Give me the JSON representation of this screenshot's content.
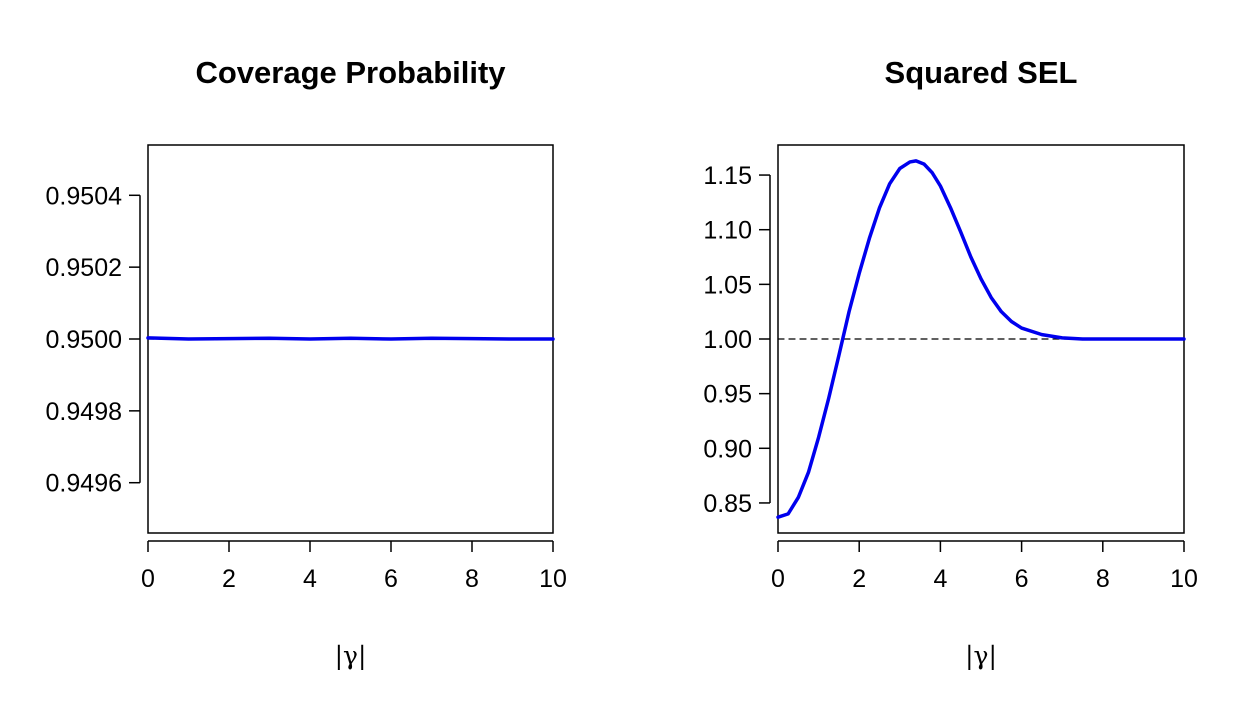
{
  "chart_data": [
    {
      "type": "line",
      "title": "Coverage Probability",
      "xlabel": "|γ|",
      "ylabel": "",
      "xlim": [
        0,
        10
      ],
      "ylim": [
        0.94946,
        0.95054
      ],
      "x_ticks": [
        0,
        2,
        4,
        6,
        8,
        10
      ],
      "x_tick_labels": [
        "0",
        "2",
        "4",
        "6",
        "8",
        "10"
      ],
      "y_ticks": [
        0.9496,
        0.9498,
        0.95,
        0.9502,
        0.9504
      ],
      "y_tick_labels": [
        "0.9496",
        "0.9498",
        "0.9500",
        "0.9502",
        "0.9504"
      ],
      "grid": false,
      "series": [
        {
          "color": "#0000EE",
          "x": [
            0,
            1,
            2,
            3,
            4,
            5,
            6,
            7,
            8,
            9,
            10
          ],
          "y": [
            0.950003,
            0.95,
            0.950001,
            0.950002,
            0.95,
            0.950002,
            0.95,
            0.950002,
            0.950001,
            0.95,
            0.95
          ]
        },
        {
          "color": "#000000",
          "style": "dashed",
          "x": [
            0,
            10
          ],
          "y": [
            0.95,
            0.95
          ]
        }
      ]
    },
    {
      "type": "line",
      "title": "Squared SEL",
      "xlabel": "|γ|",
      "ylabel": "",
      "xlim": [
        0,
        10
      ],
      "ylim": [
        0.8225,
        1.1775
      ],
      "x_ticks": [
        0,
        2,
        4,
        6,
        8,
        10
      ],
      "x_tick_labels": [
        "0",
        "2",
        "4",
        "6",
        "8",
        "10"
      ],
      "y_ticks": [
        0.85,
        0.9,
        0.95,
        1.0,
        1.05,
        1.1,
        1.15
      ],
      "y_tick_labels": [
        "0.85",
        "0.90",
        "0.95",
        "1.00",
        "1.05",
        "1.10",
        "1.15"
      ],
      "grid": false,
      "series": [
        {
          "color": "#0000EE",
          "x": [
            0,
            0.25,
            0.5,
            0.75,
            1.0,
            1.25,
            1.5,
            1.75,
            2.0,
            2.25,
            2.5,
            2.75,
            3.0,
            3.25,
            3.4,
            3.6,
            3.8,
            4.0,
            4.25,
            4.5,
            4.75,
            5.0,
            5.25,
            5.5,
            5.75,
            6.0,
            6.5,
            7.0,
            7.5,
            8.0,
            8.5,
            9.0,
            10.0
          ],
          "y": [
            0.837,
            0.84,
            0.855,
            0.878,
            0.91,
            0.946,
            0.985,
            1.025,
            1.06,
            1.092,
            1.12,
            1.142,
            1.156,
            1.162,
            1.163,
            1.16,
            1.152,
            1.14,
            1.12,
            1.098,
            1.075,
            1.055,
            1.038,
            1.025,
            1.016,
            1.01,
            1.004,
            1.001,
            1.0,
            1.0,
            1.0,
            1.0,
            1.0
          ]
        },
        {
          "color": "#000000",
          "style": "dashed",
          "x": [
            0,
            10
          ],
          "y": [
            1.0,
            1.0
          ]
        }
      ]
    }
  ]
}
